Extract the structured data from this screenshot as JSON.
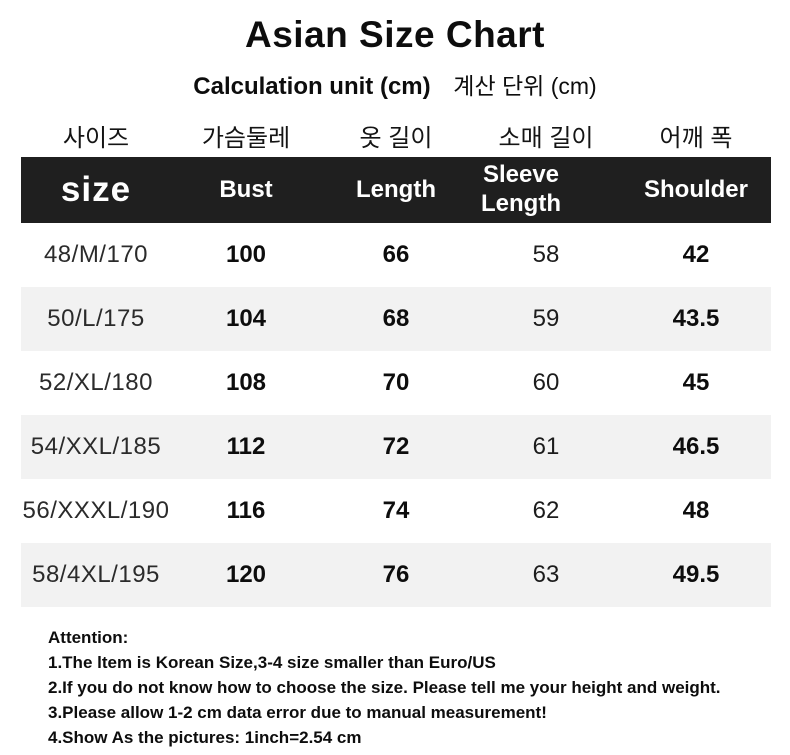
{
  "chart_data": {
    "type": "table",
    "title": "Asian Size Chart",
    "subtitle_en": "Calculation unit (cm)",
    "subtitle_ko": "계산 단위 (cm)",
    "korean_headers": [
      "사이즈",
      "가슴둘레",
      "옷 길이",
      "소매 길이",
      "어깨 폭"
    ],
    "headers": [
      "size",
      "Bust",
      "Length",
      "Sleeve Length",
      "Shoulder"
    ],
    "rows": [
      [
        "48/M/170",
        "100",
        "66",
        "58",
        "42"
      ],
      [
        "50/L/175",
        "104",
        "68",
        "59",
        "43.5"
      ],
      [
        "52/XL/180",
        "108",
        "70",
        "60",
        "45"
      ],
      [
        "54/XXL/185",
        "112",
        "72",
        "61",
        "46.5"
      ],
      [
        "56/XXXL/190",
        "116",
        "74",
        "62",
        "48"
      ],
      [
        "58/4XL/195",
        "120",
        "76",
        "63",
        "49.5"
      ]
    ]
  },
  "attention": {
    "heading": "Attention:",
    "notes": [
      "1.The ltem is Korean Size,3-4 size smaller than Euro/US",
      "2.If you do not know how to choose the size. Please tell me your height and weight.",
      "3.Please allow 1-2 cm data error due to manual measurement!",
      "4.Show As the pictures: 1inch=2.54 cm"
    ]
  },
  "colors": {
    "header_bg": "#1f1f1f",
    "row_alt_bg": "#f2f2f2",
    "text": "#0d0d0d"
  }
}
